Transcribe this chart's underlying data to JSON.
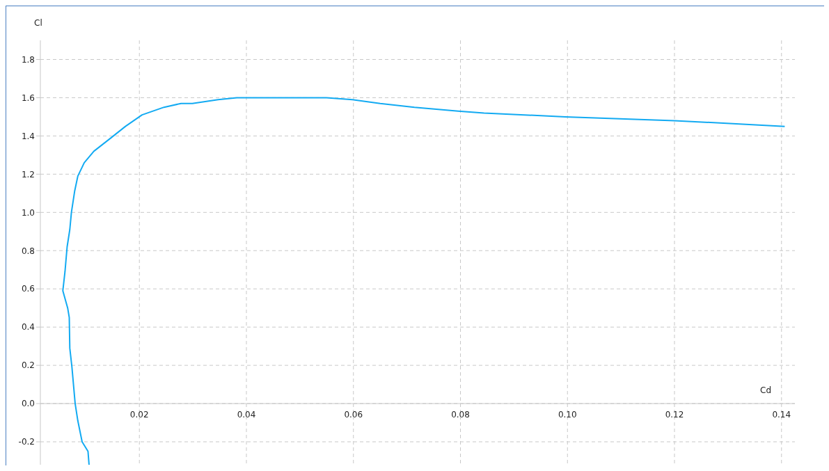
{
  "chart_data": {
    "type": "line",
    "xlabel": "Cd",
    "ylabel": "Cl",
    "x": [
      0.0106,
      0.0104,
      0.0093,
      0.0085,
      0.008,
      0.0074,
      0.007,
      0.0069,
      0.0066,
      0.0057,
      0.0061,
      0.0065,
      0.007,
      0.0073,
      0.0079,
      0.0085,
      0.0097,
      0.0115,
      0.0147,
      0.0174,
      0.0205,
      0.0246,
      0.0278,
      0.0299,
      0.0347,
      0.0382,
      0.0416,
      0.0511,
      0.055,
      0.0598,
      0.065,
      0.0714,
      0.0796,
      0.0844,
      0.0996,
      0.12,
      0.1406
    ],
    "series": [
      {
        "color": "#12aaf2",
        "values": [
          -0.32,
          -0.25,
          -0.2,
          -0.09,
          0.0,
          0.19,
          0.29,
          0.45,
          0.5,
          0.59,
          0.69,
          0.82,
          0.91,
          1.0,
          1.11,
          1.19,
          1.26,
          1.32,
          1.39,
          1.45,
          1.51,
          1.55,
          1.57,
          1.57,
          1.59,
          1.6,
          1.6,
          1.6,
          1.6,
          1.59,
          1.57,
          1.55,
          1.53,
          1.52,
          1.5,
          1.48,
          1.45
        ]
      }
    ],
    "xlim": [
      0.0015,
      0.1425
    ],
    "ylim": [
      -0.32,
      1.9
    ],
    "xticks": [
      0.02,
      0.04,
      0.06,
      0.08,
      {
        "value": 0.1,
        "label": "0.10"
      },
      0.12,
      0.14
    ],
    "yticks": [
      -0.2,
      {
        "value": 0,
        "label": "0.0"
      },
      0.2,
      0.4,
      0.6,
      0.8,
      {
        "value": 1,
        "label": "1.0"
      },
      1.2,
      1.4,
      1.6,
      1.8
    ],
    "grid": true
  }
}
